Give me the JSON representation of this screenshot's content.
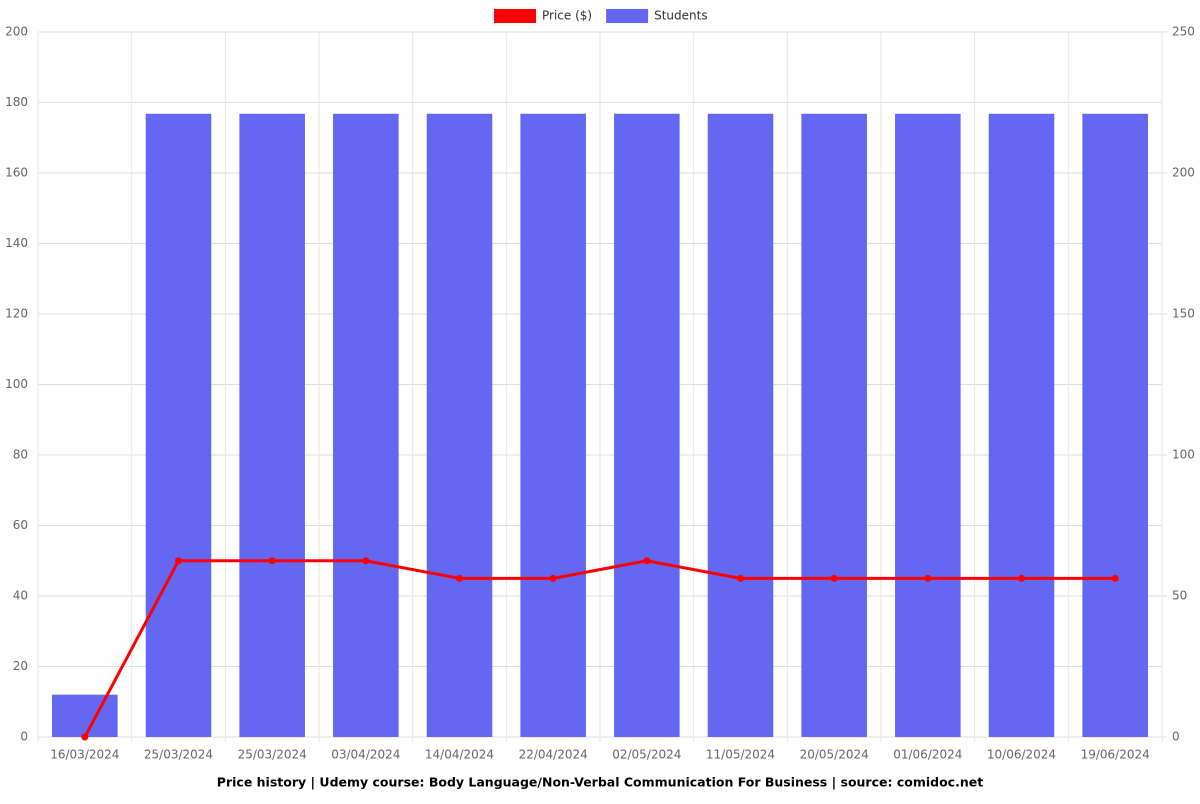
{
  "chart_data": {
    "type": "bar",
    "title": "Price history | Udemy course: Body Language/Non-Verbal Communication For Business | source: comidoc.net",
    "categories": [
      "16/03/2024",
      "25/03/2024",
      "25/03/2024",
      "03/04/2024",
      "14/04/2024",
      "22/04/2024",
      "02/05/2024",
      "11/05/2024",
      "20/05/2024",
      "01/06/2024",
      "10/06/2024",
      "19/06/2024"
    ],
    "series": [
      {
        "name": "Price ($)",
        "type": "line",
        "color": "#ff0000",
        "values": [
          0,
          50,
          50,
          50,
          45,
          45,
          50,
          45,
          45,
          45,
          45,
          45
        ]
      },
      {
        "name": "Students",
        "type": "bar",
        "axis": "y2",
        "color": "#6467f2",
        "values": [
          15,
          221,
          221,
          221,
          221,
          221,
          221,
          221,
          221,
          221,
          221,
          221
        ]
      }
    ],
    "ylim": [
      0,
      200
    ],
    "yticks": [
      0,
      20,
      40,
      60,
      80,
      100,
      120,
      140,
      160,
      180,
      200
    ],
    "y2lim": [
      0,
      250
    ],
    "y2ticks": [
      0,
      50,
      100,
      150,
      200,
      250
    ],
    "grid": true,
    "legend": "top"
  }
}
